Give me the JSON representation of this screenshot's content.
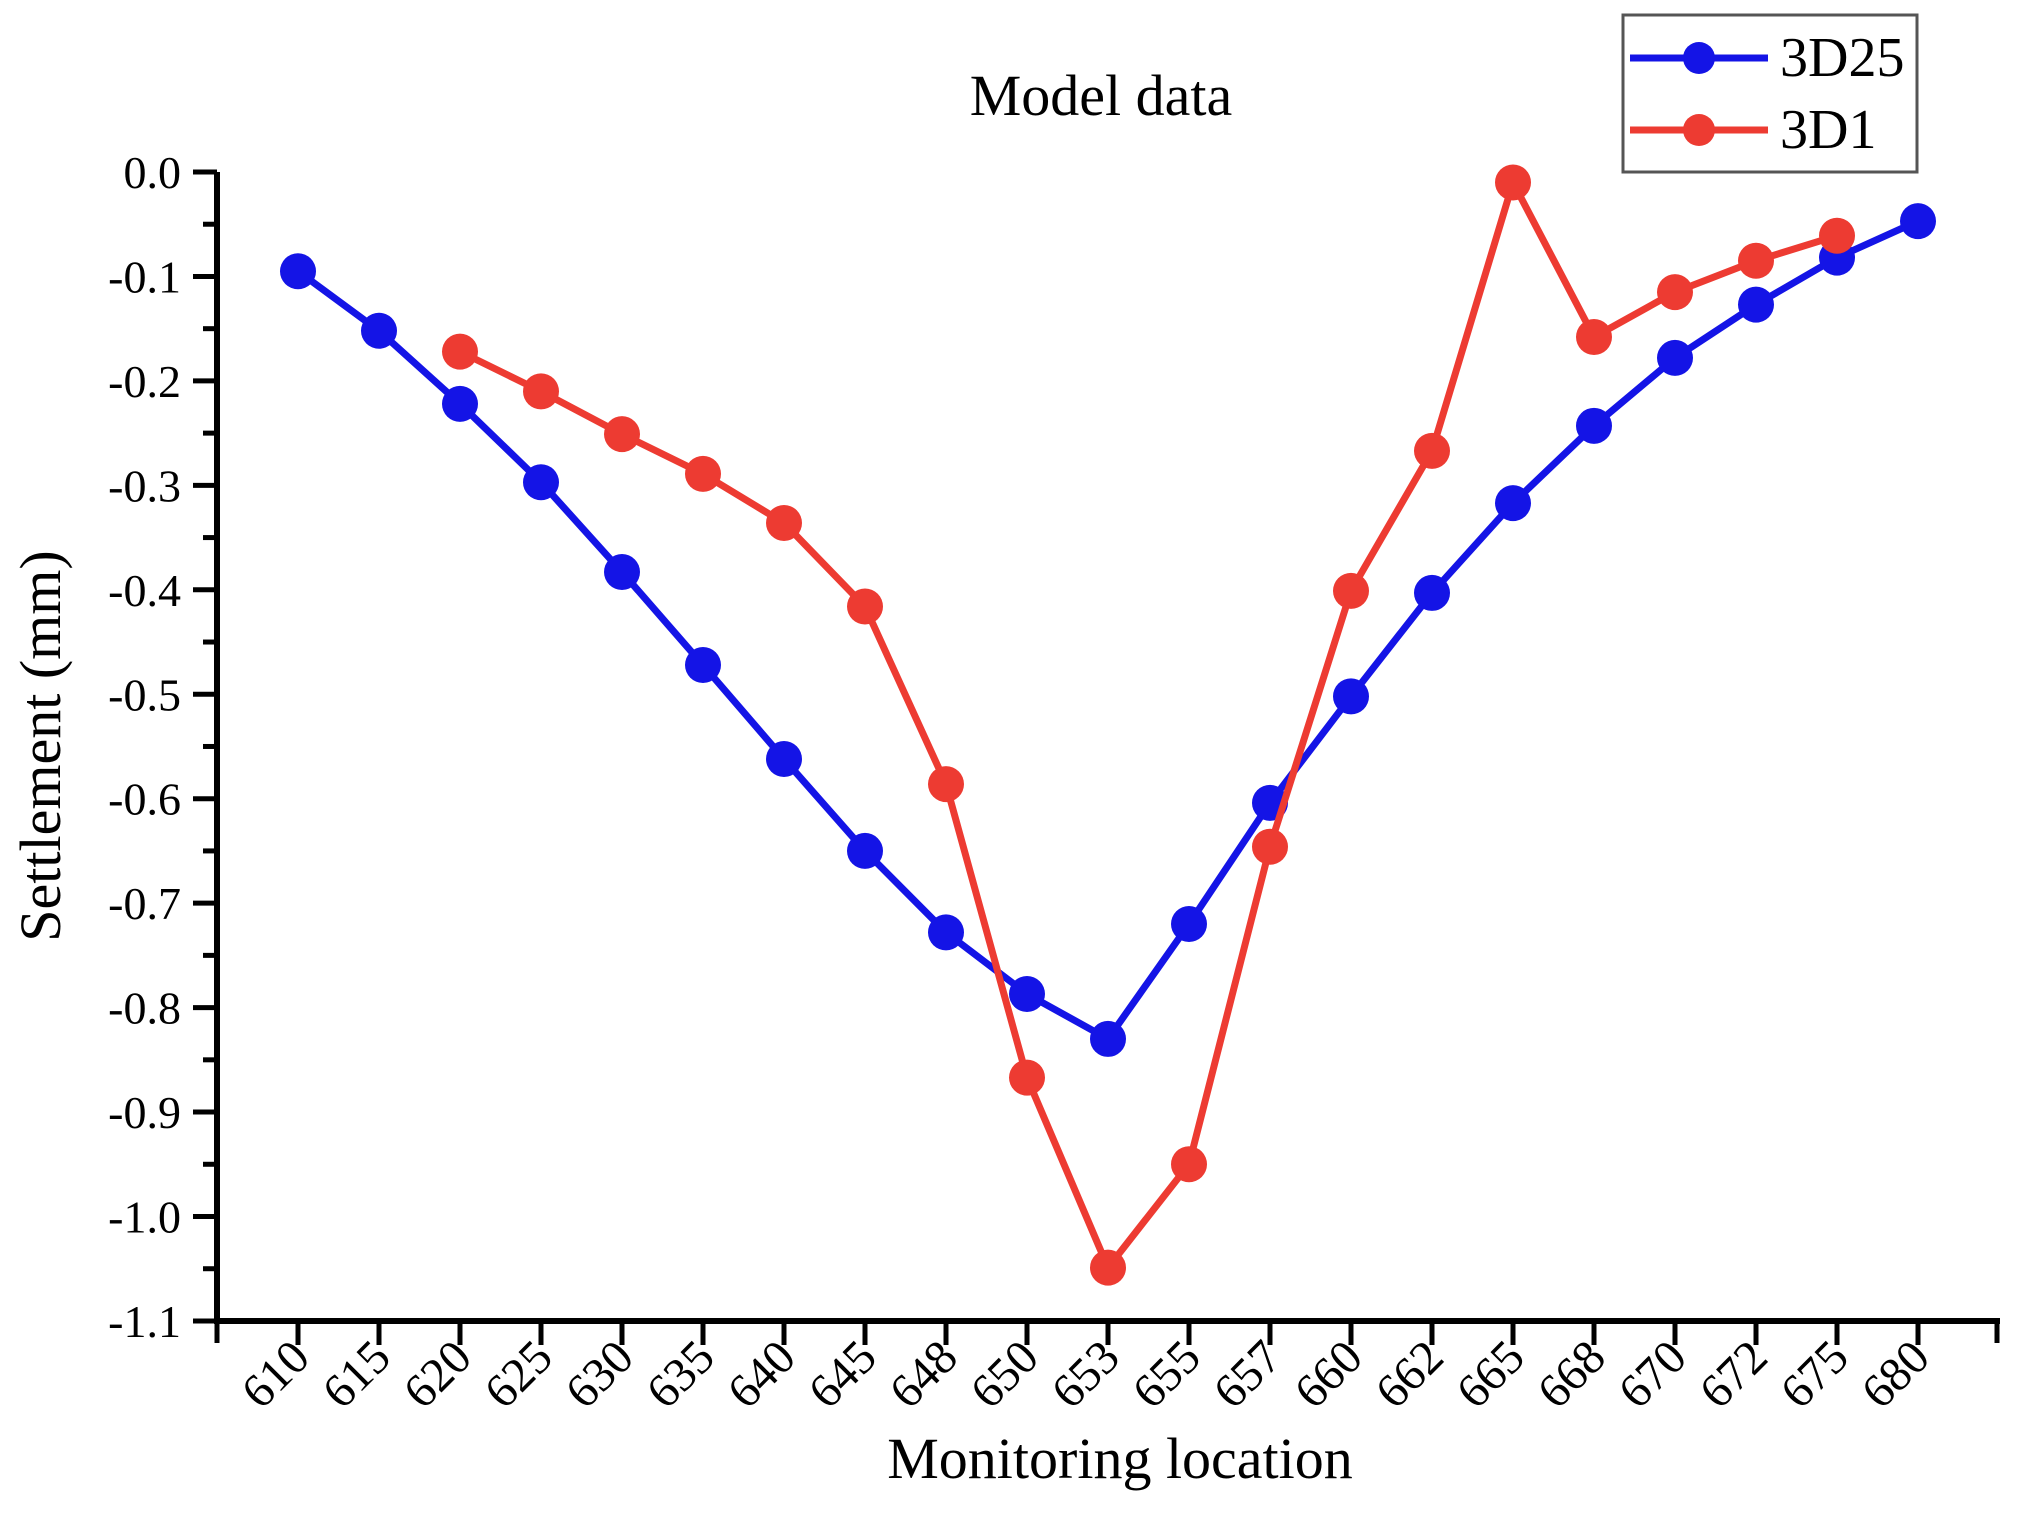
{
  "figure": {
    "background": "#ffffff",
    "axis_color": "#000000",
    "legend_border_color": "#555555"
  },
  "chart": {
    "title": "Model data",
    "axes": {
      "x": {
        "label": "Monitoring location"
      },
      "y": {
        "label": "Settlement (mm)",
        "tick_labels": [
          "0.0",
          "-0.1",
          "-0.2",
          "-0.3",
          "-0.4",
          "-0.5",
          "-0.6",
          "-0.7",
          "-0.8",
          "-0.9",
          "-1.0",
          "-1.1"
        ]
      }
    }
  },
  "chart_data": {
    "type": "line",
    "title": "Model data",
    "xlabel": "Monitoring location",
    "ylabel": "Settlement (mm)",
    "ylim": [
      -1.1,
      0.0
    ],
    "y_major_step": 0.1,
    "y_minor_step": 0.05,
    "grid": false,
    "legend_position": "top-right",
    "marker": "circle",
    "categories": [
      "610",
      "615",
      "620",
      "625",
      "630",
      "635",
      "640",
      "645",
      "648",
      "650",
      "653",
      "655",
      "657",
      "660",
      "662",
      "665",
      "668",
      "670",
      "672",
      "675",
      "680"
    ],
    "series": [
      {
        "name": "3D25",
        "color": "#1414e6",
        "x": [
          "610",
          "615",
          "620",
          "625",
          "630",
          "635",
          "640",
          "645",
          "648",
          "650",
          "653",
          "655",
          "657",
          "660",
          "662",
          "665",
          "668",
          "670",
          "672",
          "675",
          "680"
        ],
        "values": [
          -0.095,
          -0.152,
          -0.222,
          -0.297,
          -0.383,
          -0.472,
          -0.562,
          -0.65,
          -0.728,
          -0.787,
          -0.83,
          -0.72,
          -0.604,
          -0.502,
          -0.403,
          -0.317,
          -0.243,
          -0.178,
          -0.127,
          -0.082,
          -0.047
        ]
      },
      {
        "name": "3D1",
        "color": "#ed3b32",
        "x": [
          "620",
          "625",
          "630",
          "635",
          "640",
          "645",
          "648",
          "650",
          "653",
          "655",
          "657",
          "660",
          "662",
          "665",
          "668",
          "670",
          "672",
          "675"
        ],
        "values": [
          -0.172,
          -0.21,
          -0.251,
          -0.289,
          -0.336,
          -0.416,
          -0.586,
          -0.867,
          -1.049,
          -0.95,
          -0.646,
          -0.401,
          -0.267,
          -0.01,
          -0.158,
          -0.115,
          -0.085,
          -0.061
        ]
      }
    ]
  }
}
